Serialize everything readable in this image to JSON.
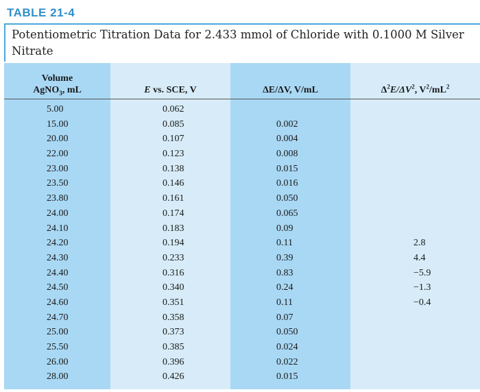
{
  "table_label": "TABLE 21-4",
  "caption": "Potentiometric Titration Data for 2.433 mmol of Chloride with 0.1000 M Silver Nitrate",
  "headers": {
    "volume_line1": "Volume",
    "volume_line2_a": "AgNO",
    "volume_line2_sub": "3",
    "volume_line2_b": ", mL",
    "e_a": "E",
    "e_b": " vs. SCE, V",
    "d1": "ΔE/ΔV, V/mL",
    "d2_a": "Δ",
    "d2_sup1": "2",
    "d2_b": "E/ΔV",
    "d2_sup2": "2",
    "d2_c": ", V",
    "d2_sup3": "2",
    "d2_d": "/mL",
    "d2_sup4": "2"
  },
  "rows": [
    {
      "v": "5.00",
      "e": "0.062",
      "d1": "",
      "d2": ""
    },
    {
      "v": "15.00",
      "e": "0.085",
      "d1": "0.002",
      "d2": ""
    },
    {
      "v": "20.00",
      "e": "0.107",
      "d1": "0.004",
      "d2": ""
    },
    {
      "v": "22.00",
      "e": "0.123",
      "d1": "0.008",
      "d2": ""
    },
    {
      "v": "23.00",
      "e": "0.138",
      "d1": "0.015",
      "d2": ""
    },
    {
      "v": "23.50",
      "e": "0.146",
      "d1": "0.016",
      "d2": ""
    },
    {
      "v": "23.80",
      "e": "0.161",
      "d1": "0.050",
      "d2": ""
    },
    {
      "v": "24.00",
      "e": "0.174",
      "d1": "0.065",
      "d2": ""
    },
    {
      "v": "24.10",
      "e": "0.183",
      "d1": "0.09",
      "d2": ""
    },
    {
      "v": "24.20",
      "e": "0.194",
      "d1": "0.11",
      "d2": "2.8"
    },
    {
      "v": "24.30",
      "e": "0.233",
      "d1": "0.39",
      "d2": "4.4"
    },
    {
      "v": "24.40",
      "e": "0.316",
      "d1": "0.83",
      "d2": "−5.9"
    },
    {
      "v": "24.50",
      "e": "0.340",
      "d1": "0.24",
      "d2": "−1.3"
    },
    {
      "v": "24.60",
      "e": "0.351",
      "d1": "0.11",
      "d2": "−0.4"
    },
    {
      "v": "24.70",
      "e": "0.358",
      "d1": "0.07",
      "d2": ""
    },
    {
      "v": "25.00",
      "e": "0.373",
      "d1": "0.050",
      "d2": ""
    },
    {
      "v": "25.50",
      "e": "0.385",
      "d1": "0.024",
      "d2": ""
    },
    {
      "v": "26.00",
      "e": "0.396",
      "d1": "0.022",
      "d2": ""
    },
    {
      "v": "28.00",
      "e": "0.426",
      "d1": "0.015",
      "d2": ""
    }
  ]
}
